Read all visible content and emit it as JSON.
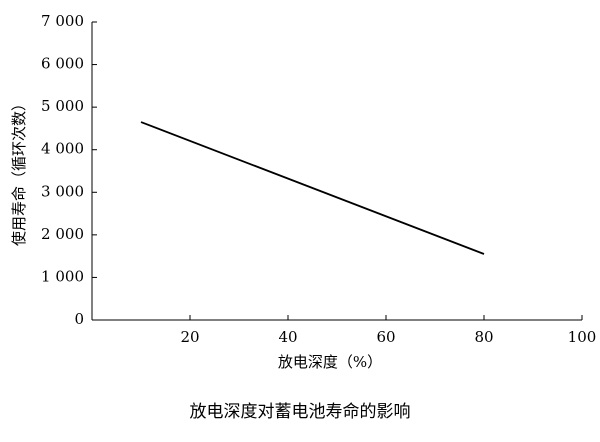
{
  "chart_data": {
    "type": "line",
    "title": "放电深度对蓄电池寿命的影响",
    "x_label": "放电深度（%）",
    "y_label": "使用寿命（循环次数）",
    "x": [
      10,
      80
    ],
    "series": [
      {
        "name": "使用寿命",
        "color": "#000000",
        "values": [
          4650,
          1550
        ]
      }
    ],
    "xlim": [
      0,
      100
    ],
    "xticks": [
      20,
      40,
      60,
      80,
      100
    ],
    "ylim": [
      0,
      7000
    ],
    "yticks": [
      0,
      {
        "value": 1000,
        "label": "1 000"
      },
      {
        "value": 2000,
        "label": "2 000"
      },
      {
        "value": 3000,
        "label": "3 000"
      },
      {
        "value": 4000,
        "label": "4 000"
      },
      {
        "value": 5000,
        "label": "5 000"
      },
      {
        "value": 6000,
        "label": "6 000"
      },
      {
        "value": 7000,
        "label": "7 000"
      }
    ],
    "grid": false
  }
}
